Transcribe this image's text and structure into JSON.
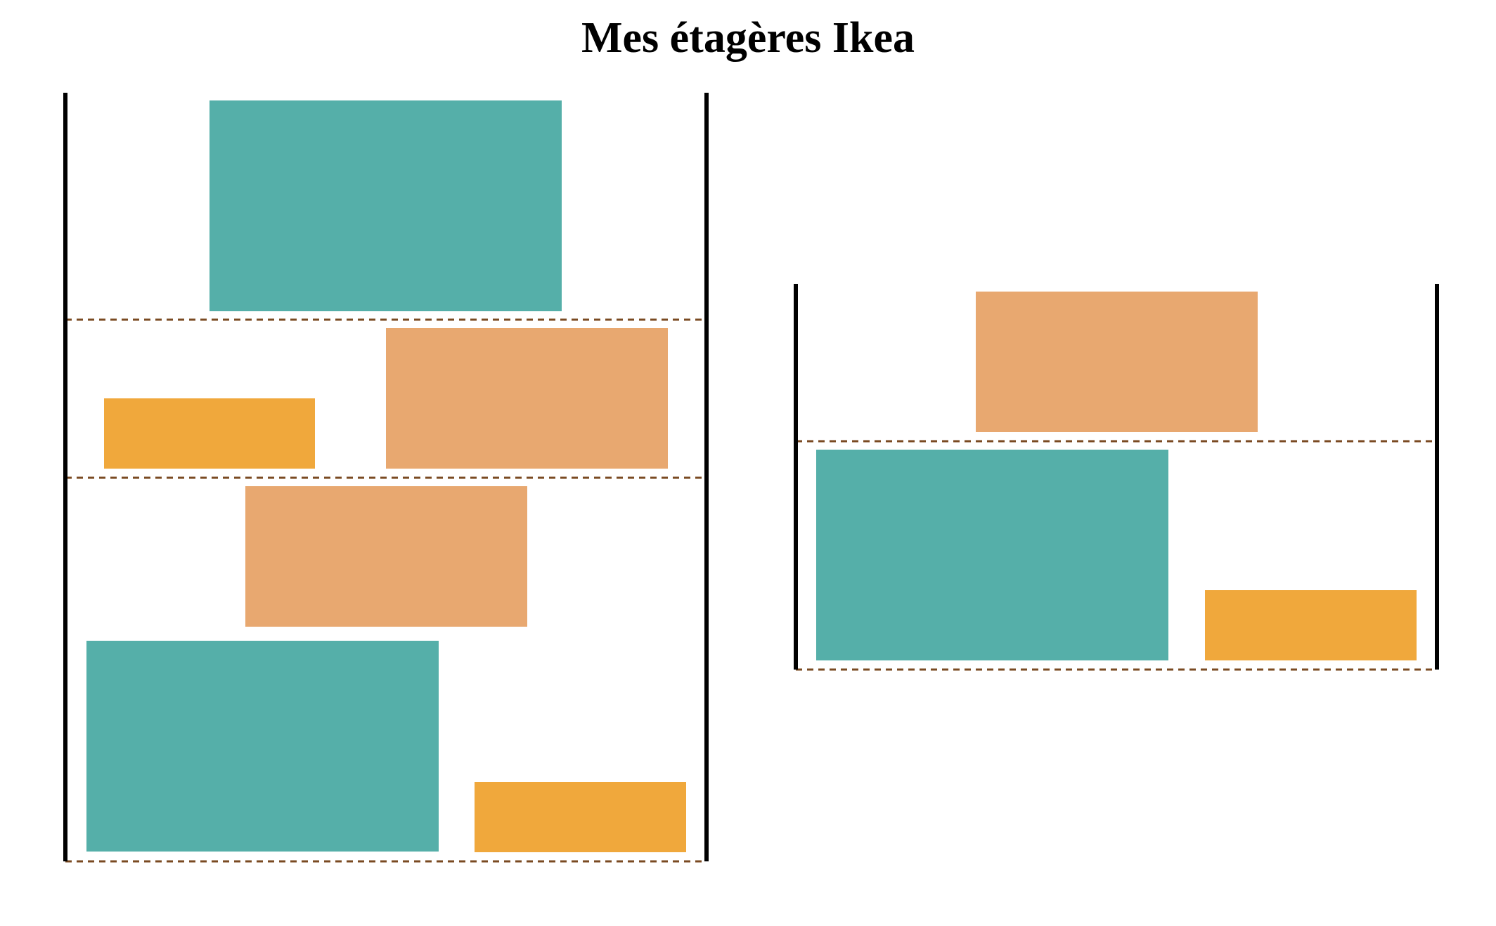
{
  "title": "Mes étagères Ikea",
  "colors": {
    "teal": "#55AFA9",
    "light_orange": "#E8A870",
    "orange": "#F0A83C",
    "post": "#000000",
    "shelf_line": "#7A4A22"
  },
  "shelving_units": [
    {
      "shelves": [
        {
          "boxes": [
            {
              "color": "teal"
            }
          ]
        },
        {
          "boxes": [
            {
              "color": "orange"
            },
            {
              "color": "light_orange"
            }
          ]
        },
        {
          "boxes": [
            {
              "color": "light_orange"
            },
            {
              "color": "teal"
            },
            {
              "color": "orange"
            }
          ]
        }
      ]
    },
    {
      "shelves": [
        {
          "boxes": [
            {
              "color": "light_orange"
            }
          ]
        },
        {
          "boxes": [
            {
              "color": "teal"
            },
            {
              "color": "orange"
            }
          ]
        }
      ]
    }
  ]
}
